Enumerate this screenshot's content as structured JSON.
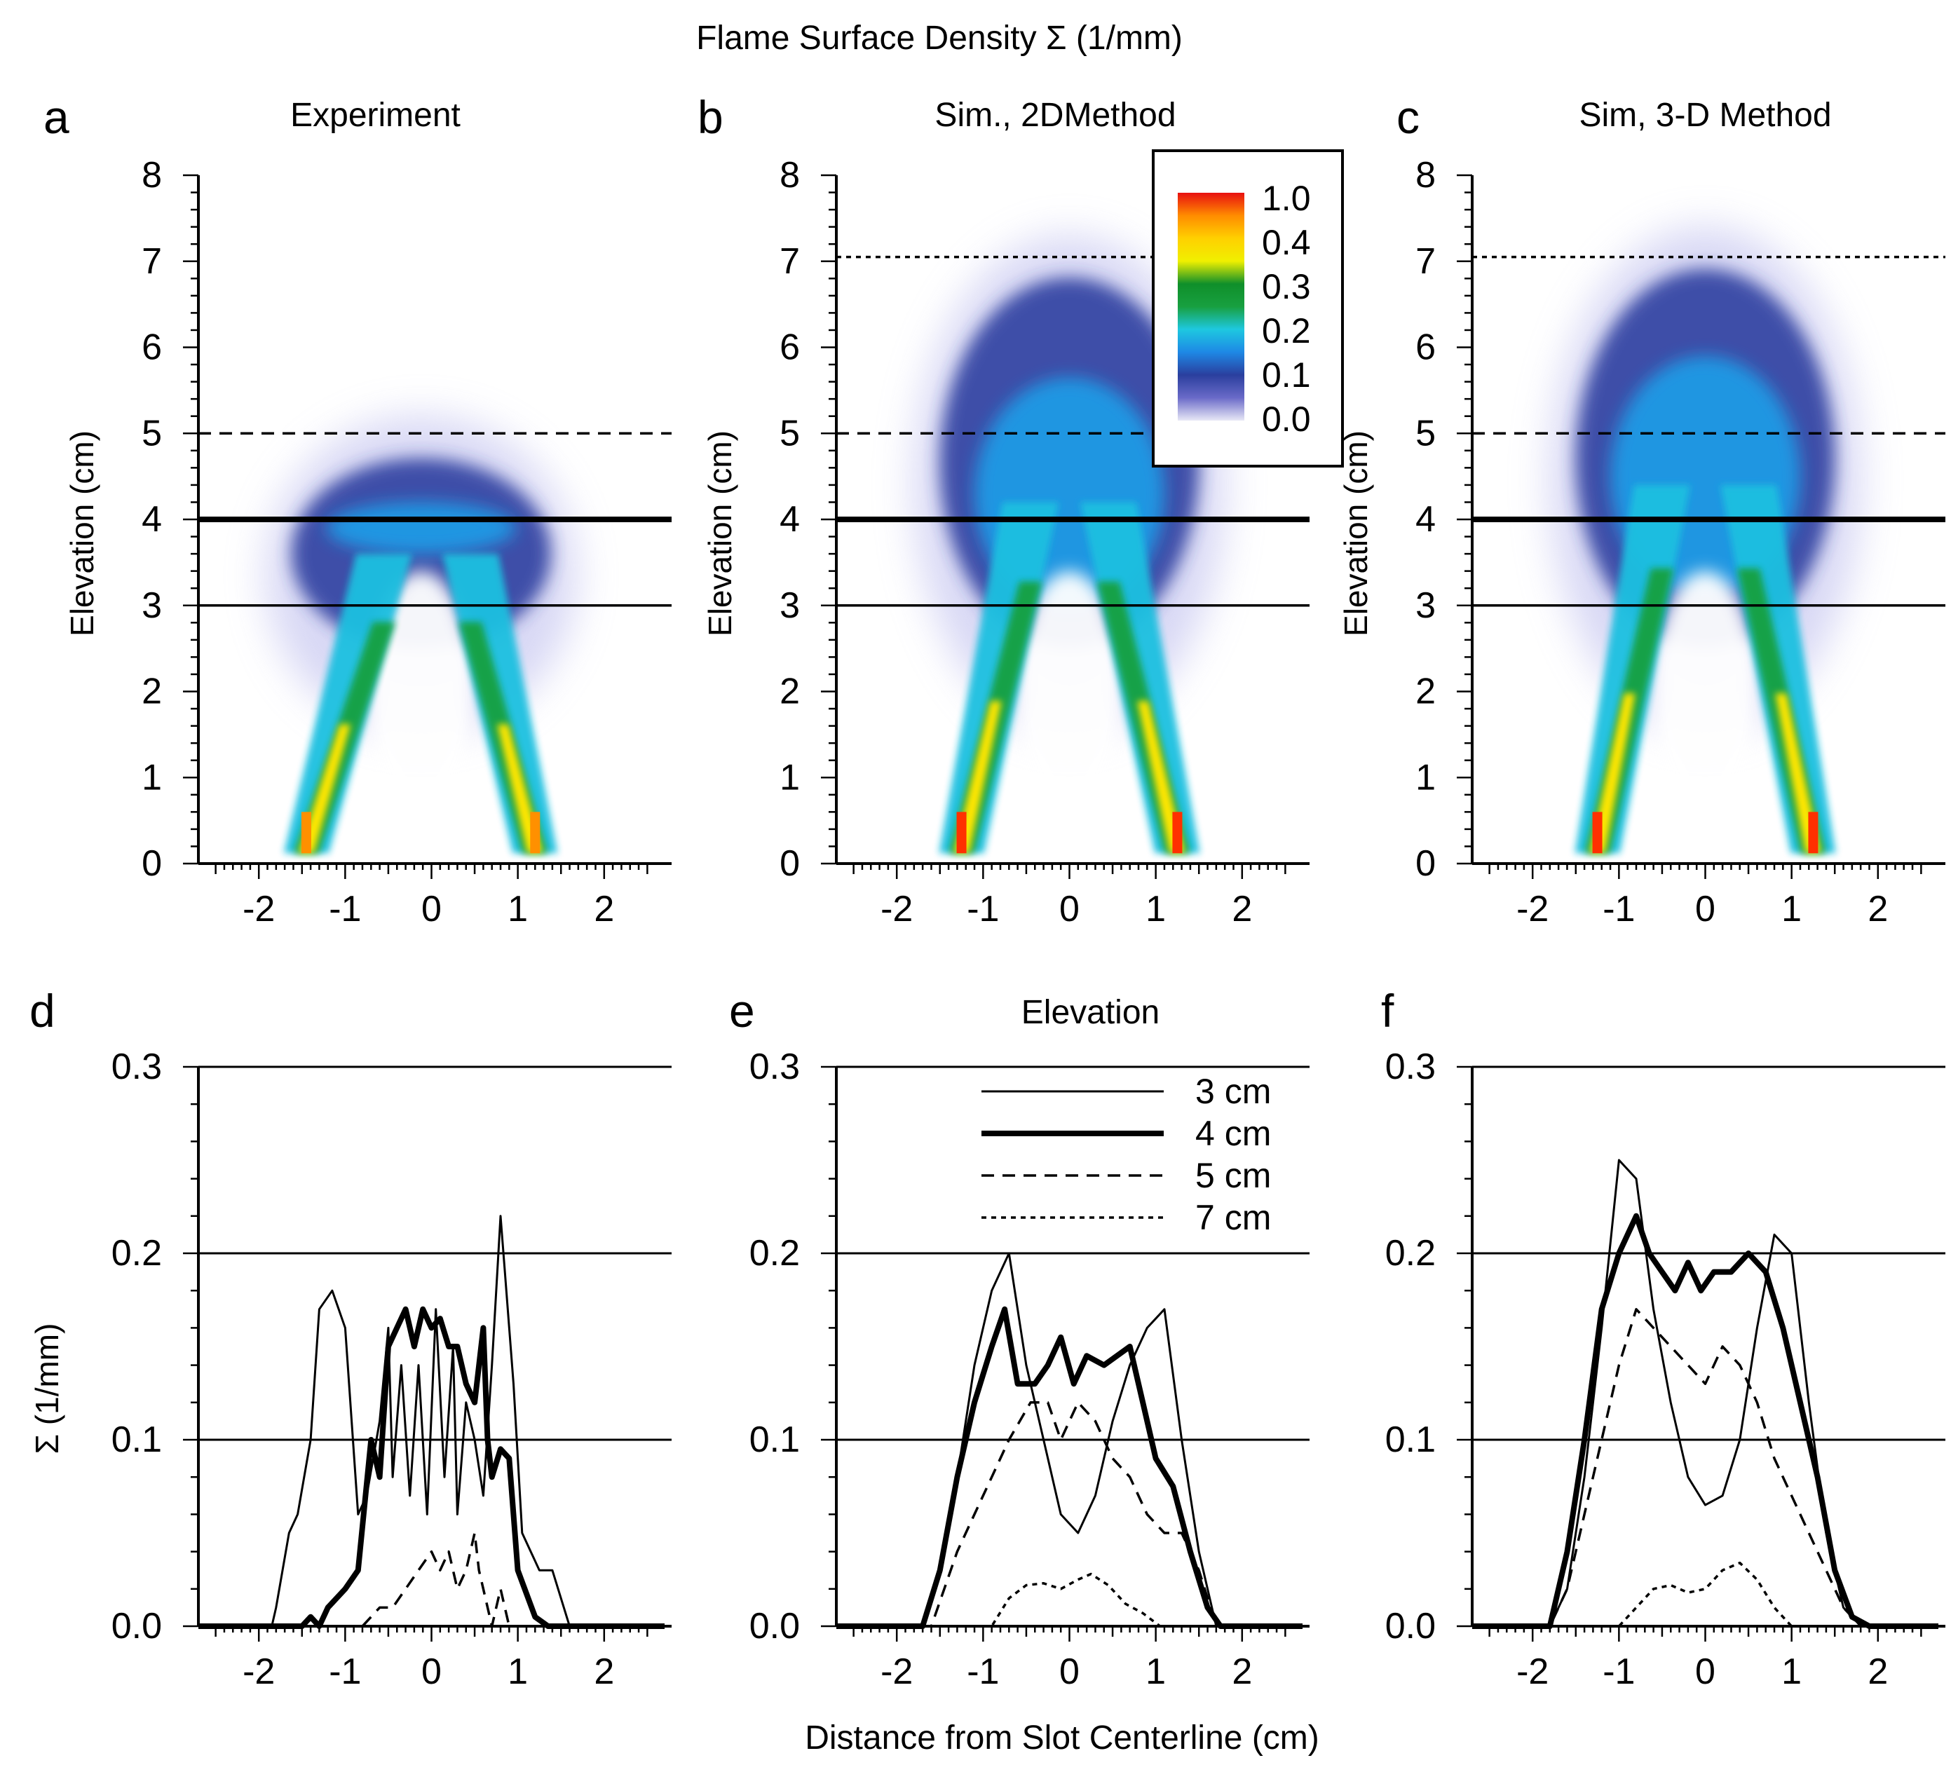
{
  "figure": {
    "top_title": "Flame Surface Density Σ (1/mm)",
    "xlabel": "Distance from Slot Centerline (cm)"
  },
  "colorbar": {
    "labels": [
      "1.0",
      "0.4",
      "0.3",
      "0.2",
      "0.1",
      "0.0"
    ],
    "colors": [
      "#e8e8f6",
      "#6a6ac8",
      "#2a3f9e",
      "#1e88e5",
      "#1ec8e0",
      "#18a040",
      "#0f8f2a",
      "#f0f000",
      "#ffd000",
      "#ff8c00",
      "#e81010"
    ]
  },
  "chart_data": [
    {
      "type": "heatmap",
      "panel": "a",
      "title": "Experiment",
      "ylabel": "Elevation (cm)",
      "xlim": [
        -2.7,
        2.7
      ],
      "ylim": [
        0,
        8
      ],
      "xticks": [
        "-2",
        "-1",
        "0",
        "1",
        "2"
      ],
      "yticks": [
        "0",
        "1",
        "2",
        "3",
        "4",
        "5",
        "6",
        "7",
        "8"
      ],
      "guide_lines": [
        {
          "y": 3,
          "style": "solid"
        },
        {
          "y": 4,
          "style": "bold"
        },
        {
          "y": 5,
          "style": "dashed"
        }
      ],
      "legs": [
        {
          "x0": -1.45,
          "x1": -0.55,
          "ytop": 3.6
        },
        {
          "x0": 1.2,
          "x1": 0.45,
          "ytop": 3.6
        }
      ],
      "peak_x": -0.4,
      "peak_y": 3.9,
      "plume_top": 5.2,
      "peak_color": "#ffe600"
    },
    {
      "type": "heatmap",
      "panel": "b",
      "title": "Sim., 2DMethod",
      "ylabel": "Elevation (cm)",
      "xlim": [
        -2.7,
        2.7
      ],
      "ylim": [
        0,
        8
      ],
      "xticks": [
        "-2",
        "-1",
        "0",
        "1",
        "2"
      ],
      "yticks": [
        "0",
        "1",
        "2",
        "3",
        "4",
        "5",
        "6",
        "7",
        "8"
      ],
      "guide_lines": [
        {
          "y": 3,
          "style": "solid"
        },
        {
          "y": 4,
          "style": "bold"
        },
        {
          "y": 5,
          "style": "dashed"
        },
        {
          "y": 7.05,
          "style": "dotted"
        }
      ],
      "legs": [
        {
          "x0": -1.25,
          "x1": -0.45,
          "ytop": 4.2
        },
        {
          "x0": 1.25,
          "x1": 0.45,
          "ytop": 4.2
        }
      ],
      "peak_x": 0.0,
      "peak_y": 4.3,
      "plume_top": 7.3,
      "peak_color": "#ff3000"
    },
    {
      "type": "heatmap",
      "panel": "c",
      "title": "Sim, 3-D Method",
      "ylabel": "Elevation (cm)",
      "xlim": [
        -2.7,
        2.7
      ],
      "ylim": [
        0,
        8
      ],
      "xticks": [
        "-2",
        "-1",
        "0",
        "1",
        "2"
      ],
      "yticks": [
        "0",
        "1",
        "2",
        "3",
        "4",
        "5",
        "6",
        "7",
        "8"
      ],
      "guide_lines": [
        {
          "y": 3,
          "style": "solid"
        },
        {
          "y": 4,
          "style": "bold"
        },
        {
          "y": 5,
          "style": "dashed"
        },
        {
          "y": 7.05,
          "style": "dotted"
        }
      ],
      "legs": [
        {
          "x0": -1.25,
          "x1": -0.5,
          "ytop": 4.4
        },
        {
          "x0": 1.25,
          "x1": 0.5,
          "ytop": 4.4
        }
      ],
      "peak_x": 0.0,
      "peak_y": 4.5,
      "plume_top": 7.4,
      "peak_color": "#ff3000"
    },
    {
      "type": "line",
      "panel": "d",
      "title": "",
      "ylabel": "Σ (1/mm)",
      "xlim": [
        -2.7,
        2.7
      ],
      "ylim": [
        0,
        0.3
      ],
      "xticks": [
        "-2",
        "-1",
        "0",
        "1",
        "2"
      ],
      "yticks": [
        "0.0",
        "0.1",
        "0.2",
        "0.3"
      ],
      "series": [
        {
          "name": "3 cm",
          "style": "thin",
          "x": [
            -2.7,
            -1.85,
            -1.8,
            -1.65,
            -1.55,
            -1.4,
            -1.3,
            -1.15,
            -1.0,
            -0.85,
            -0.75,
            -0.6,
            -0.5,
            -0.45,
            -0.35,
            -0.25,
            -0.15,
            -0.05,
            0.05,
            0.15,
            0.25,
            0.3,
            0.4,
            0.5,
            0.6,
            0.7,
            0.8,
            0.85,
            0.95,
            1.05,
            1.15,
            1.25,
            1.4,
            1.6,
            2.7
          ],
          "y": [
            0,
            0,
            0.01,
            0.05,
            0.06,
            0.1,
            0.17,
            0.18,
            0.16,
            0.06,
            0.07,
            0.11,
            0.16,
            0.08,
            0.14,
            0.07,
            0.14,
            0.06,
            0.17,
            0.08,
            0.15,
            0.06,
            0.12,
            0.1,
            0.07,
            0.14,
            0.22,
            0.19,
            0.13,
            0.05,
            0.04,
            0.03,
            0.03,
            0,
            0
          ]
        },
        {
          "name": "4 cm",
          "style": "bold",
          "x": [
            -2.7,
            -1.5,
            -1.4,
            -1.3,
            -1.2,
            -1.0,
            -0.85,
            -0.7,
            -0.6,
            -0.5,
            -0.4,
            -0.3,
            -0.2,
            -0.1,
            0.0,
            0.1,
            0.2,
            0.3,
            0.4,
            0.5,
            0.6,
            0.65,
            0.7,
            0.8,
            0.9,
            1.0,
            1.2,
            1.35,
            2.7
          ],
          "y": [
            0,
            0,
            0.005,
            0,
            0.01,
            0.02,
            0.03,
            0.1,
            0.08,
            0.15,
            0.16,
            0.17,
            0.15,
            0.17,
            0.16,
            0.165,
            0.15,
            0.15,
            0.13,
            0.12,
            0.16,
            0.1,
            0.08,
            0.095,
            0.09,
            0.03,
            0.005,
            0,
            0
          ]
        },
        {
          "name": "5 cm",
          "style": "dashed",
          "x": [
            -0.8,
            -0.6,
            -0.45,
            -0.3,
            -0.15,
            0.0,
            0.1,
            0.2,
            0.3,
            0.4,
            0.5,
            0.55,
            0.6,
            0.7,
            0.8,
            0.9
          ],
          "y": [
            0,
            0.01,
            0.01,
            0.02,
            0.03,
            0.04,
            0.03,
            0.04,
            0.02,
            0.03,
            0.05,
            0.03,
            0.02,
            0.0,
            0.02,
            0.0
          ]
        },
        {
          "name": "7 cm",
          "style": "dotted",
          "x": [
            -2.7,
            2.7
          ],
          "y": [
            0,
            0
          ]
        }
      ]
    },
    {
      "type": "line",
      "panel": "e",
      "title": "Elevation",
      "ylabel": "",
      "xlim": [
        -2.7,
        2.7
      ],
      "ylim": [
        0,
        0.3
      ],
      "xticks": [
        "-2",
        "-1",
        "0",
        "1",
        "2"
      ],
      "yticks": [
        "0.0",
        "0.1",
        "0.2",
        "0.3"
      ],
      "series": [
        {
          "name": "3 cm",
          "style": "thin",
          "x": [
            -2.7,
            -1.7,
            -1.5,
            -1.3,
            -1.1,
            -0.9,
            -0.7,
            -0.5,
            -0.3,
            -0.1,
            0.1,
            0.3,
            0.5,
            0.7,
            0.9,
            1.1,
            1.3,
            1.5,
            1.7,
            2.7
          ],
          "y": [
            0,
            0,
            0.03,
            0.08,
            0.14,
            0.18,
            0.2,
            0.14,
            0.1,
            0.06,
            0.05,
            0.07,
            0.11,
            0.14,
            0.16,
            0.17,
            0.1,
            0.04,
            0,
            0
          ]
        },
        {
          "name": "4 cm",
          "style": "bold",
          "x": [
            -2.7,
            -1.7,
            -1.5,
            -1.3,
            -1.1,
            -0.9,
            -0.75,
            -0.6,
            -0.4,
            -0.25,
            -0.1,
            0.05,
            0.2,
            0.4,
            0.7,
            0.85,
            1.0,
            1.2,
            1.4,
            1.6,
            1.75,
            2.7
          ],
          "y": [
            0,
            0,
            0.03,
            0.08,
            0.12,
            0.15,
            0.17,
            0.13,
            0.13,
            0.14,
            0.155,
            0.13,
            0.145,
            0.14,
            0.15,
            0.12,
            0.09,
            0.075,
            0.04,
            0.01,
            0,
            0
          ]
        },
        {
          "name": "5 cm",
          "style": "dashed",
          "x": [
            -2.7,
            -1.6,
            -1.3,
            -1.1,
            -0.9,
            -0.7,
            -0.45,
            -0.25,
            -0.1,
            0.1,
            0.3,
            0.5,
            0.7,
            0.9,
            1.1,
            1.3,
            1.5,
            1.7,
            2.7
          ],
          "y": [
            0,
            0,
            0.04,
            0.06,
            0.08,
            0.1,
            0.12,
            0.12,
            0.1,
            0.12,
            0.11,
            0.09,
            0.08,
            0.06,
            0.05,
            0.05,
            0.03,
            0,
            0
          ]
        },
        {
          "name": "7 cm",
          "style": "dotted",
          "x": [
            -2.7,
            -0.9,
            -0.7,
            -0.5,
            -0.3,
            -0.1,
            0.1,
            0.25,
            0.45,
            0.65,
            0.85,
            1.05,
            2.7
          ],
          "y": [
            0,
            0,
            0.015,
            0.022,
            0.023,
            0.02,
            0.025,
            0.028,
            0.022,
            0.012,
            0.007,
            0,
            0
          ]
        }
      ]
    },
    {
      "type": "line",
      "panel": "f",
      "title": "",
      "ylabel": "",
      "xlim": [
        -2.7,
        2.7
      ],
      "ylim": [
        0,
        0.3
      ],
      "xticks": [
        "-2",
        "-1",
        "0",
        "1",
        "2"
      ],
      "yticks": [
        "0.0",
        "0.1",
        "0.2",
        "0.3"
      ],
      "series": [
        {
          "name": "3 cm",
          "style": "thin",
          "x": [
            -2.7,
            -1.8,
            -1.6,
            -1.4,
            -1.2,
            -1.0,
            -0.8,
            -0.6,
            -0.4,
            -0.2,
            0.0,
            0.2,
            0.4,
            0.6,
            0.8,
            1.0,
            1.2,
            1.4,
            1.6,
            1.8,
            2.7
          ],
          "y": [
            0,
            0,
            0.02,
            0.08,
            0.16,
            0.25,
            0.24,
            0.17,
            0.12,
            0.08,
            0.065,
            0.07,
            0.1,
            0.16,
            0.21,
            0.2,
            0.12,
            0.05,
            0.01,
            0,
            0
          ]
        },
        {
          "name": "4 cm",
          "style": "bold",
          "x": [
            -2.7,
            -1.8,
            -1.6,
            -1.4,
            -1.2,
            -1.0,
            -0.8,
            -0.65,
            -0.5,
            -0.35,
            -0.2,
            -0.05,
            0.1,
            0.3,
            0.5,
            0.7,
            0.9,
            1.1,
            1.3,
            1.5,
            1.7,
            1.9,
            2.7
          ],
          "y": [
            0,
            0,
            0.04,
            0.1,
            0.17,
            0.2,
            0.22,
            0.2,
            0.19,
            0.18,
            0.195,
            0.18,
            0.19,
            0.19,
            0.2,
            0.19,
            0.16,
            0.12,
            0.08,
            0.03,
            0.005,
            0,
            0
          ]
        },
        {
          "name": "5 cm",
          "style": "dashed",
          "x": [
            -2.7,
            -1.8,
            -1.6,
            -1.4,
            -1.2,
            -1.0,
            -0.8,
            -0.6,
            -0.4,
            -0.2,
            0.0,
            0.2,
            0.4,
            0.6,
            0.8,
            1.0,
            1.2,
            1.4,
            1.6,
            1.8,
            2.7
          ],
          "y": [
            0,
            0,
            0.02,
            0.06,
            0.1,
            0.14,
            0.17,
            0.16,
            0.15,
            0.14,
            0.13,
            0.15,
            0.14,
            0.12,
            0.09,
            0.07,
            0.05,
            0.03,
            0.01,
            0,
            0
          ]
        },
        {
          "name": "7 cm",
          "style": "dotted",
          "x": [
            -2.7,
            -1.0,
            -0.8,
            -0.6,
            -0.4,
            -0.2,
            0.0,
            0.2,
            0.4,
            0.6,
            0.8,
            1.0,
            2.7
          ],
          "y": [
            0,
            0,
            0.01,
            0.02,
            0.022,
            0.018,
            0.02,
            0.03,
            0.034,
            0.025,
            0.01,
            0,
            0
          ]
        }
      ]
    }
  ],
  "legend": {
    "entries": [
      {
        "label": "3 cm",
        "style": "thin"
      },
      {
        "label": "4 cm",
        "style": "bold"
      },
      {
        "label": "5 cm",
        "style": "dashed"
      },
      {
        "label": "7 cm",
        "style": "dotted"
      }
    ]
  }
}
